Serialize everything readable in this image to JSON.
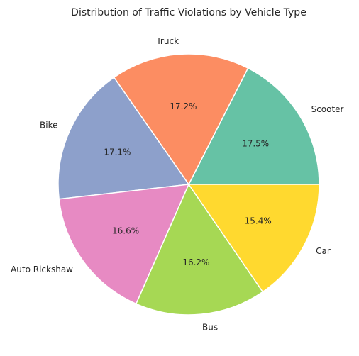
{
  "chart_data": {
    "type": "pie",
    "title": "Distribution of Traffic Violations by Vehicle Type",
    "start_angle_deg": 0,
    "direction": "counterclockwise",
    "slices": [
      {
        "label": "Scooter",
        "value": 17.5,
        "pct_label": "17.5%",
        "color": "#66c2a5"
      },
      {
        "label": "Truck",
        "value": 17.2,
        "pct_label": "17.2%",
        "color": "#fc8d62"
      },
      {
        "label": "Bike",
        "value": 17.1,
        "pct_label": "17.1%",
        "color": "#8da0cb"
      },
      {
        "label": "Auto Rickshaw",
        "value": 16.6,
        "pct_label": "16.6%",
        "color": "#e78ac3"
      },
      {
        "label": "Bus",
        "value": 16.2,
        "pct_label": "16.2%",
        "color": "#a6d854"
      },
      {
        "label": "Car",
        "value": 15.4,
        "pct_label": "15.4%",
        "color": "#ffd92f"
      }
    ]
  }
}
